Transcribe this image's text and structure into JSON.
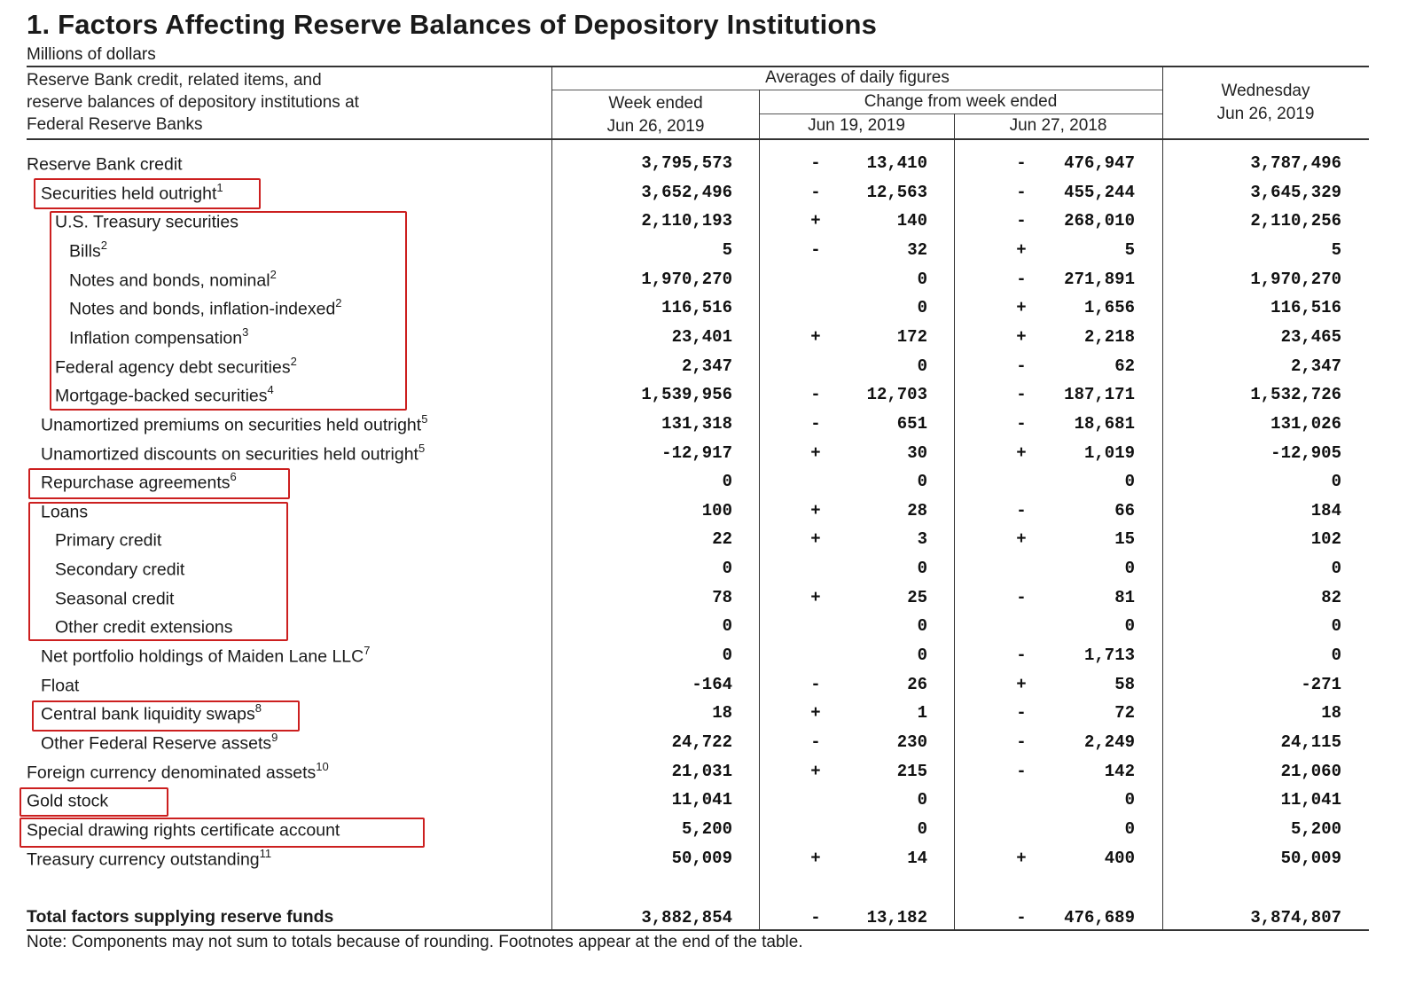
{
  "title": "1. Factors Affecting Reserve Balances of Depository Institutions",
  "corner_text": "",
  "units": "Millions of dollars",
  "header": {
    "stub": [
      "Reserve Bank credit, related items, and",
      "reserve balances of depository institutions at",
      "Federal Reserve Banks"
    ],
    "averages": "Averages of daily figures",
    "week_ended": [
      "Week ended",
      "Jun 26, 2019"
    ],
    "change_from": "Change from week ended",
    "change_col1": "Jun 19, 2019",
    "change_col2": "Jun 27, 2018",
    "wednesday": [
      "Wednesday",
      "Jun 26, 2019"
    ]
  },
  "rows": [
    {
      "label": "Reserve Bank credit",
      "sup": "",
      "week": "3,795,573",
      "s1": "-",
      "c1": "13,410",
      "s2": "-",
      "c2": "476,947",
      "wed": "3,787,496"
    },
    {
      "label": "Securities held outright",
      "sup": "1",
      "week": "3,652,496",
      "s1": "-",
      "c1": "12,563",
      "s2": "-",
      "c2": "455,244",
      "wed": "3,645,329"
    },
    {
      "label": "U.S. Treasury securities",
      "sup": "",
      "week": "2,110,193",
      "s1": "+",
      "c1": "140",
      "s2": "-",
      "c2": "268,010",
      "wed": "2,110,256"
    },
    {
      "label": "Bills",
      "sup": "2",
      "week": "5",
      "s1": "-",
      "c1": "32",
      "s2": "+",
      "c2": "5",
      "wed": "5"
    },
    {
      "label": "Notes and bonds, nominal",
      "sup": "2",
      "week": "1,970,270",
      "s1": "",
      "c1": "0",
      "s2": "-",
      "c2": "271,891",
      "wed": "1,970,270"
    },
    {
      "label": "Notes and bonds, inflation-indexed",
      "sup": "2",
      "week": "116,516",
      "s1": "",
      "c1": "0",
      "s2": "+",
      "c2": "1,656",
      "wed": "116,516"
    },
    {
      "label": "Inflation compensation",
      "sup": "3",
      "week": "23,401",
      "s1": "+",
      "c1": "172",
      "s2": "+",
      "c2": "2,218",
      "wed": "23,465"
    },
    {
      "label": "Federal agency debt securities",
      "sup": "2",
      "week": "2,347",
      "s1": "",
      "c1": "0",
      "s2": "-",
      "c2": "62",
      "wed": "2,347"
    },
    {
      "label": "Mortgage-backed securities",
      "sup": "4",
      "week": "1,539,956",
      "s1": "-",
      "c1": "12,703",
      "s2": "-",
      "c2": "187,171",
      "wed": "1,532,726"
    },
    {
      "label": "Unamortized premiums on securities held outright",
      "sup": "5",
      "week": "131,318",
      "s1": "-",
      "c1": "651",
      "s2": "-",
      "c2": "18,681",
      "wed": "131,026"
    },
    {
      "label": "Unamortized discounts on securities held outright",
      "sup": "5",
      "week": "-12,917",
      "s1": "+",
      "c1": "30",
      "s2": "+",
      "c2": "1,019",
      "wed": "-12,905"
    },
    {
      "label": "Repurchase agreements",
      "sup": "6",
      "week": "0",
      "s1": "",
      "c1": "0",
      "s2": "",
      "c2": "0",
      "wed": "0"
    },
    {
      "label": "Loans",
      "sup": "",
      "week": "100",
      "s1": "+",
      "c1": "28",
      "s2": "-",
      "c2": "66",
      "wed": "184"
    },
    {
      "label": "Primary credit",
      "sup": "",
      "week": "22",
      "s1": "+",
      "c1": "3",
      "s2": "+",
      "c2": "15",
      "wed": "102"
    },
    {
      "label": "Secondary credit",
      "sup": "",
      "week": "0",
      "s1": "",
      "c1": "0",
      "s2": "",
      "c2": "0",
      "wed": "0"
    },
    {
      "label": "Seasonal credit",
      "sup": "",
      "week": "78",
      "s1": "+",
      "c1": "25",
      "s2": "-",
      "c2": "81",
      "wed": "82"
    },
    {
      "label": "Other credit extensions",
      "sup": "",
      "week": "0",
      "s1": "",
      "c1": "0",
      "s2": "",
      "c2": "0",
      "wed": "0"
    },
    {
      "label": "Net portfolio holdings of Maiden Lane LLC",
      "sup": "7",
      "week": "0",
      "s1": "",
      "c1": "0",
      "s2": "-",
      "c2": "1,713",
      "wed": "0"
    },
    {
      "label": "Float",
      "sup": "",
      "week": "-164",
      "s1": "-",
      "c1": "26",
      "s2": "+",
      "c2": "58",
      "wed": "-271"
    },
    {
      "label": "Central bank liquidity swaps",
      "sup": "8",
      "week": "18",
      "s1": "+",
      "c1": "1",
      "s2": "-",
      "c2": "72",
      "wed": "18"
    },
    {
      "label": "Other Federal Reserve assets",
      "sup": "9",
      "week": "24,722",
      "s1": "-",
      "c1": "230",
      "s2": "-",
      "c2": "2,249",
      "wed": "24,115"
    },
    {
      "label": "Foreign currency denominated assets",
      "sup": "10",
      "week": "21,031",
      "s1": "+",
      "c1": "215",
      "s2": "-",
      "c2": "142",
      "wed": "21,060"
    },
    {
      "label": "Gold stock",
      "sup": "",
      "week": "11,041",
      "s1": "",
      "c1": "0",
      "s2": "",
      "c2": "0",
      "wed": "11,041"
    },
    {
      "label": "Special drawing rights certificate account",
      "sup": "",
      "week": "5,200",
      "s1": "",
      "c1": "0",
      "s2": "",
      "c2": "0",
      "wed": "5,200"
    },
    {
      "label": "Treasury currency outstanding",
      "sup": "11",
      "week": "50,009",
      "s1": "+",
      "c1": "14",
      "s2": "+",
      "c2": "400",
      "wed": "50,009"
    }
  ],
  "total": {
    "label": "Total factors supplying reserve funds",
    "week": "3,882,854",
    "s1": "-",
    "c1": "13,182",
    "s2": "-",
    "c2": "476,689",
    "wed": "3,874,807"
  },
  "note": "Note: Components may not sum to totals because of rounding. Footnotes appear at the end of the table.",
  "highlight_color": "#cc1f1f"
}
